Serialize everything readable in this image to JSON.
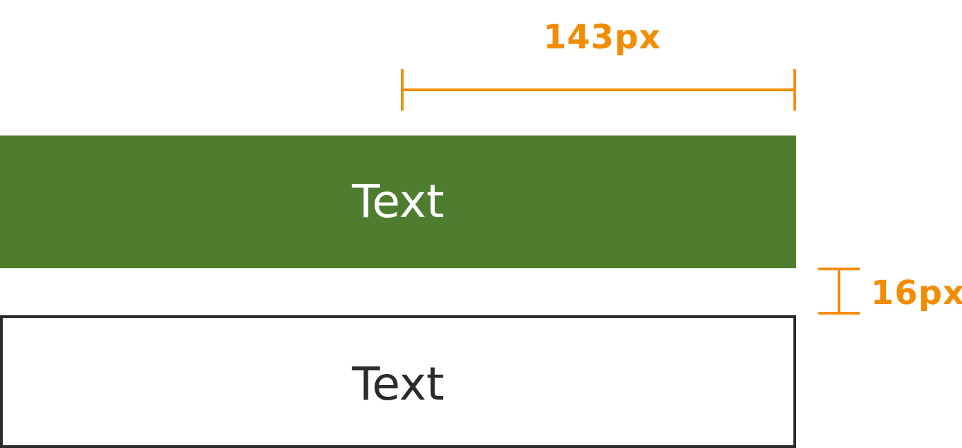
{
  "colors": {
    "accent": "#f28c00",
    "primary_fill": "#4e7d30",
    "outline": "#2b2b2b",
    "primary_text": "#ffffff",
    "outline_text": "#2b2b2b"
  },
  "annotations": {
    "width_label": "143px",
    "gap_label": "16px"
  },
  "buttons": {
    "primary_label": "Text",
    "outline_label": "Text"
  }
}
